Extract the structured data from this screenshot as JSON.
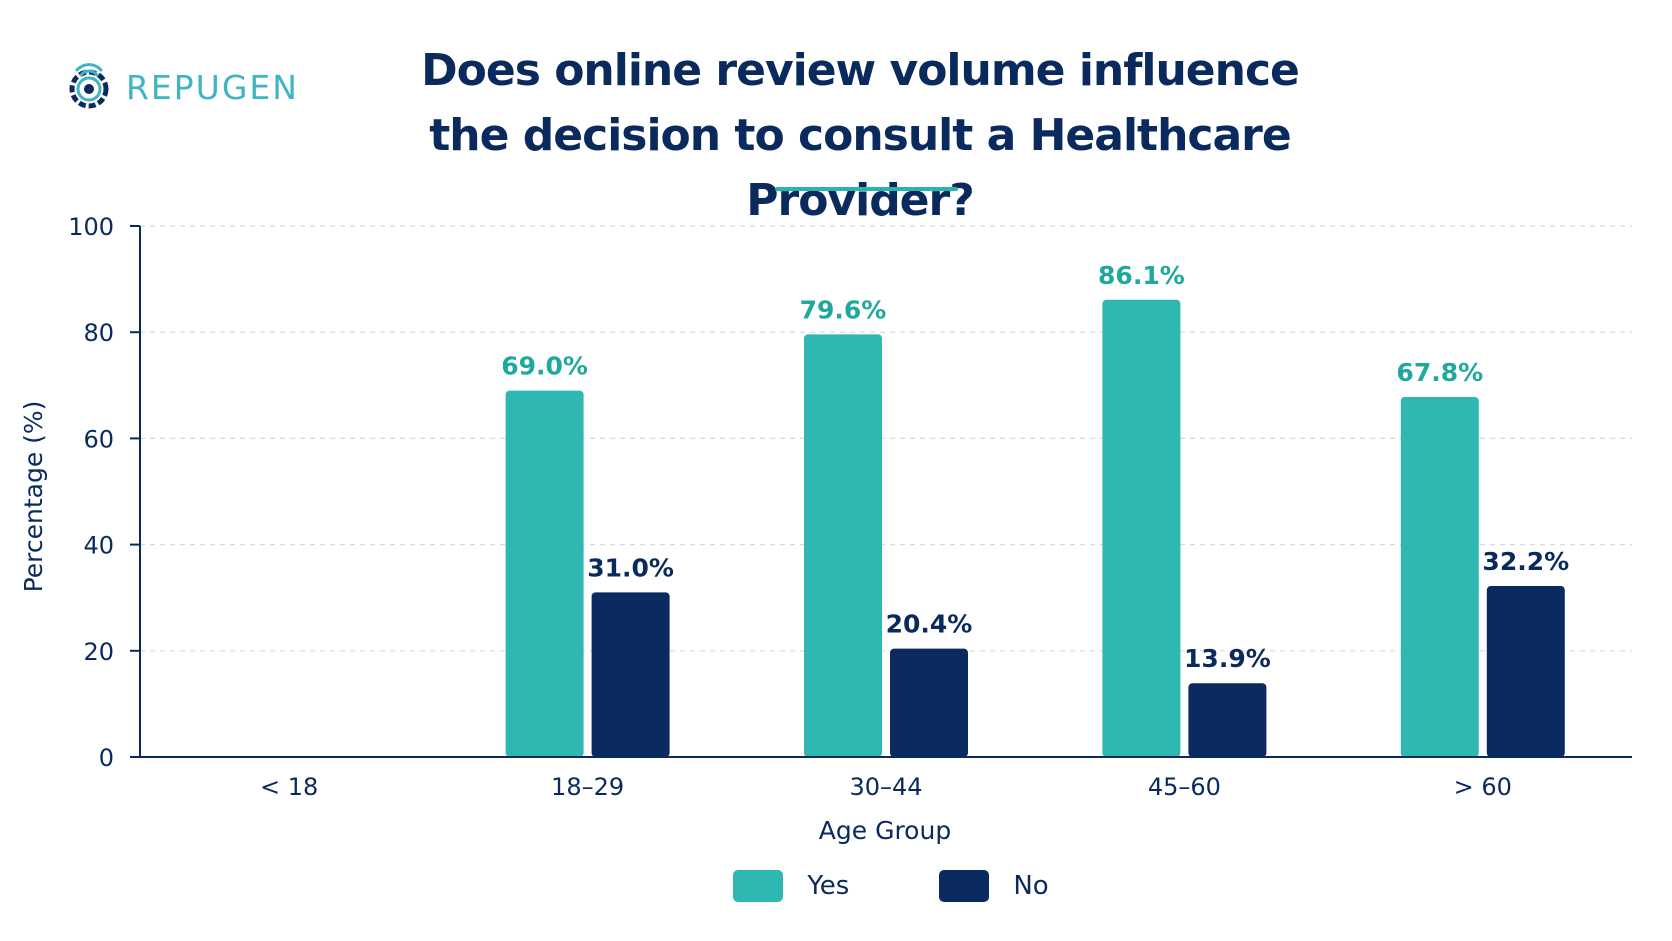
{
  "logo": {
    "text": "REPUGEN",
    "icon": "repugen-gear-icon",
    "color": "#3fb4c3"
  },
  "title_lines": [
    "Does online review volume influence",
    "the decision to consult a Healthcare Provider?"
  ],
  "chart_data": {
    "type": "bar",
    "categories": [
      "< 18",
      "18–29",
      "30–44",
      "45–60",
      "> 60"
    ],
    "series": [
      {
        "name": "Yes",
        "color": "#2fb8b2",
        "label_color": "#1fa99e",
        "values": [
          null,
          69.0,
          79.6,
          86.1,
          67.8
        ],
        "labels": [
          "",
          "69.0%",
          "79.6%",
          "86.1%",
          "67.8%"
        ]
      },
      {
        "name": "No",
        "color": "#0b2a5f",
        "label_color": "#0a2a5e",
        "values": [
          null,
          31.0,
          20.4,
          13.9,
          32.2
        ],
        "labels": [
          "",
          "31.0%",
          "20.4%",
          "13.9%",
          "32.2%"
        ]
      }
    ],
    "xlabel": "Age Group",
    "ylabel": "Percentage (%)",
    "ylim": [
      0,
      100
    ],
    "yticks": [
      "0",
      "20",
      "40",
      "60",
      "80",
      "100"
    ],
    "grid": true,
    "legend_position": "bottom-center"
  }
}
